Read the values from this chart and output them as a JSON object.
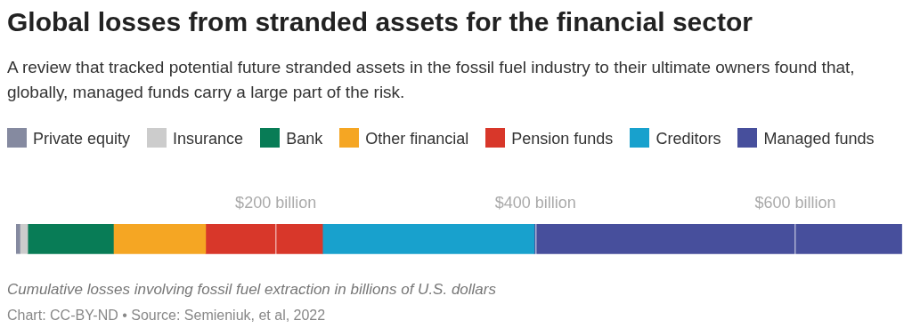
{
  "chart_data": {
    "type": "bar",
    "orientation": "horizontal",
    "stacked": true,
    "title": "Global losses from stranded assets for the financial sector",
    "subtitle": "A review that tracked potential future stranded assets in the fossil fuel industry to their ultimate owners found that, globally, managed funds carry a large part of the risk.",
    "categories": [
      null
    ],
    "series": [
      {
        "name": "Private equity",
        "color": "#858aa0",
        "values": [
          3
        ]
      },
      {
        "name": "Insurance",
        "color": "#cccccc",
        "values": [
          6
        ]
      },
      {
        "name": "Bank",
        "color": "#087c56",
        "values": [
          66
        ]
      },
      {
        "name": "Other financial",
        "color": "#f5a623",
        "values": [
          71
        ]
      },
      {
        "name": "Pension funds",
        "color": "#d8372a",
        "values": [
          90
        ]
      },
      {
        "name": "Creditors",
        "color": "#18a1cd",
        "values": [
          163
        ]
      },
      {
        "name": "Managed funds",
        "color": "#474f9c",
        "values": [
          283
        ]
      }
    ],
    "xlim": [
      0,
      683
    ],
    "xticks": [
      {
        "value": 200,
        "label": "$200 billion"
      },
      {
        "value": 400,
        "label": "$400 billion"
      },
      {
        "value": 600,
        "label": "$600 billion"
      }
    ],
    "grid": "x",
    "legend": "top",
    "annotations": [
      "Cumulative losses involving fossil fuel extraction in billions of U.S. dollars",
      "Chart: CC-BY-ND • Source: Semieniuk, et al, 2022"
    ]
  }
}
